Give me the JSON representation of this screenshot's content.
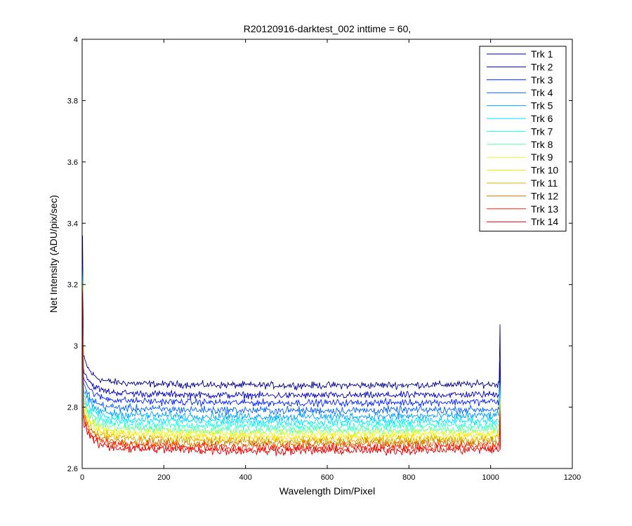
{
  "chart_data": {
    "type": "line",
    "title": "R20120916-darktest_002 inttime = 60,",
    "xlabel": "Wavelength Dim/Pixel",
    "ylabel": "Net Intensity (ADU/pix/sec)",
    "xlim": [
      0,
      1200
    ],
    "ylim": [
      2.6,
      4
    ],
    "xticks": [
      "0",
      "200",
      "400",
      "600",
      "800",
      "1000",
      "1200"
    ],
    "yticks": [
      "2.6",
      "2.8",
      "3",
      "3.2",
      "3.4",
      "3.6",
      "3.8",
      "4"
    ],
    "x_range": [
      1,
      1024
    ],
    "grid": false,
    "legend_position": "top-right",
    "series": [
      {
        "name": "Trk 1",
        "color": "#00008f",
        "start_value": 3.36,
        "end_spike": 3.07,
        "plateau": 2.875,
        "noise": 0.007
      },
      {
        "name": "Trk 2",
        "color": "#0000bf",
        "start_value": 3.3,
        "end_spike": 2.95,
        "plateau": 2.842,
        "noise": 0.007
      },
      {
        "name": "Trk 3",
        "color": "#0020ff",
        "start_value": 3.27,
        "end_spike": 2.9,
        "plateau": 2.818,
        "noise": 0.007
      },
      {
        "name": "Trk 4",
        "color": "#0060ff",
        "start_value": 3.25,
        "end_spike": 2.88,
        "plateau": 2.793,
        "noise": 0.008
      },
      {
        "name": "Trk 5",
        "color": "#00a0ff",
        "start_value": 3.24,
        "end_spike": 2.87,
        "plateau": 2.773,
        "noise": 0.008
      },
      {
        "name": "Trk 6",
        "color": "#00dfff",
        "start_value": 3.23,
        "end_spike": 2.86,
        "plateau": 2.757,
        "noise": 0.008
      },
      {
        "name": "Trk 7",
        "color": "#20ffdf",
        "start_value": 3.22,
        "end_spike": 2.85,
        "plateau": 2.742,
        "noise": 0.008
      },
      {
        "name": "Trk 8",
        "color": "#60ff9f",
        "start_value": 3.21,
        "end_spike": 2.84,
        "plateau": 2.728,
        "noise": 0.008
      },
      {
        "name": "Trk 9",
        "color": "#dfff20",
        "start_value": 3.2,
        "end_spike": 2.83,
        "plateau": 2.716,
        "noise": 0.008
      },
      {
        "name": "Trk 10",
        "color": "#ffe000",
        "start_value": 3.2,
        "end_spike": 2.82,
        "plateau": 2.705,
        "noise": 0.008
      },
      {
        "name": "Trk 11",
        "color": "#d8b000",
        "start_value": 3.19,
        "end_spike": 2.81,
        "plateau": 2.695,
        "noise": 0.009
      },
      {
        "name": "Trk 12",
        "color": "#d07800",
        "start_value": 3.18,
        "end_spike": 2.8,
        "plateau": 2.684,
        "noise": 0.009
      },
      {
        "name": "Trk 13",
        "color": "#ff2000",
        "start_value": 3.18,
        "end_spike": 2.79,
        "plateau": 2.673,
        "noise": 0.009
      },
      {
        "name": "Trk 14",
        "color": "#df0000",
        "start_value": 3.17,
        "end_spike": 2.78,
        "plateau": 2.662,
        "noise": 0.009
      }
    ]
  }
}
